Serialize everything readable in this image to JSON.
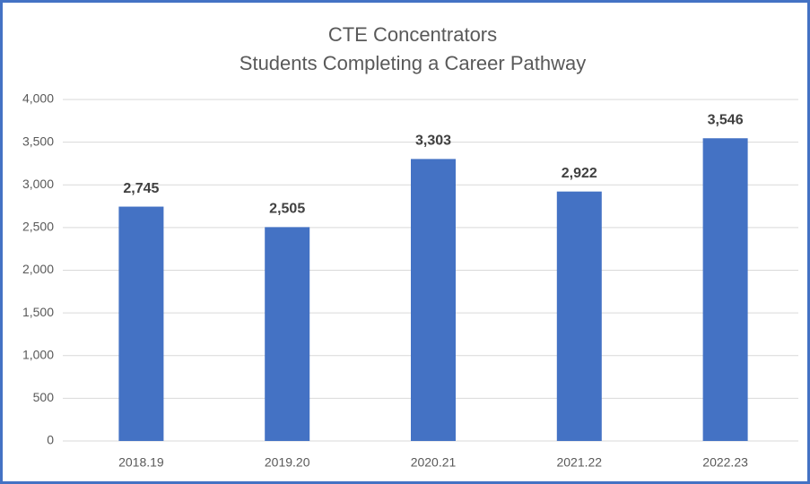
{
  "chart_data": {
    "type": "bar",
    "title": "CTE Concentrators",
    "subtitle": "Students Completing a Career Pathway",
    "categories": [
      "2018.19",
      "2019.20",
      "2020.21",
      "2021.22",
      "2022.23"
    ],
    "values": [
      2745,
      2505,
      3303,
      2922,
      3546
    ],
    "value_labels": [
      "2,745",
      "2,505",
      "3,303",
      "2,922",
      "3,546"
    ],
    "color": "#4472c4",
    "ylim": [
      0,
      4000
    ],
    "yticks": [
      0,
      500,
      {
        "value": 1000,
        "label": "1,000"
      },
      {
        "value": 1500,
        "label": "1,500"
      },
      {
        "value": 2000,
        "label": "2,000"
      },
      {
        "value": 2500,
        "label": "2,500"
      },
      {
        "value": 3000,
        "label": "3,000"
      },
      {
        "value": 3500,
        "label": "3,500"
      },
      {
        "value": 4000,
        "label": "4,000"
      }
    ],
    "grid": true
  }
}
